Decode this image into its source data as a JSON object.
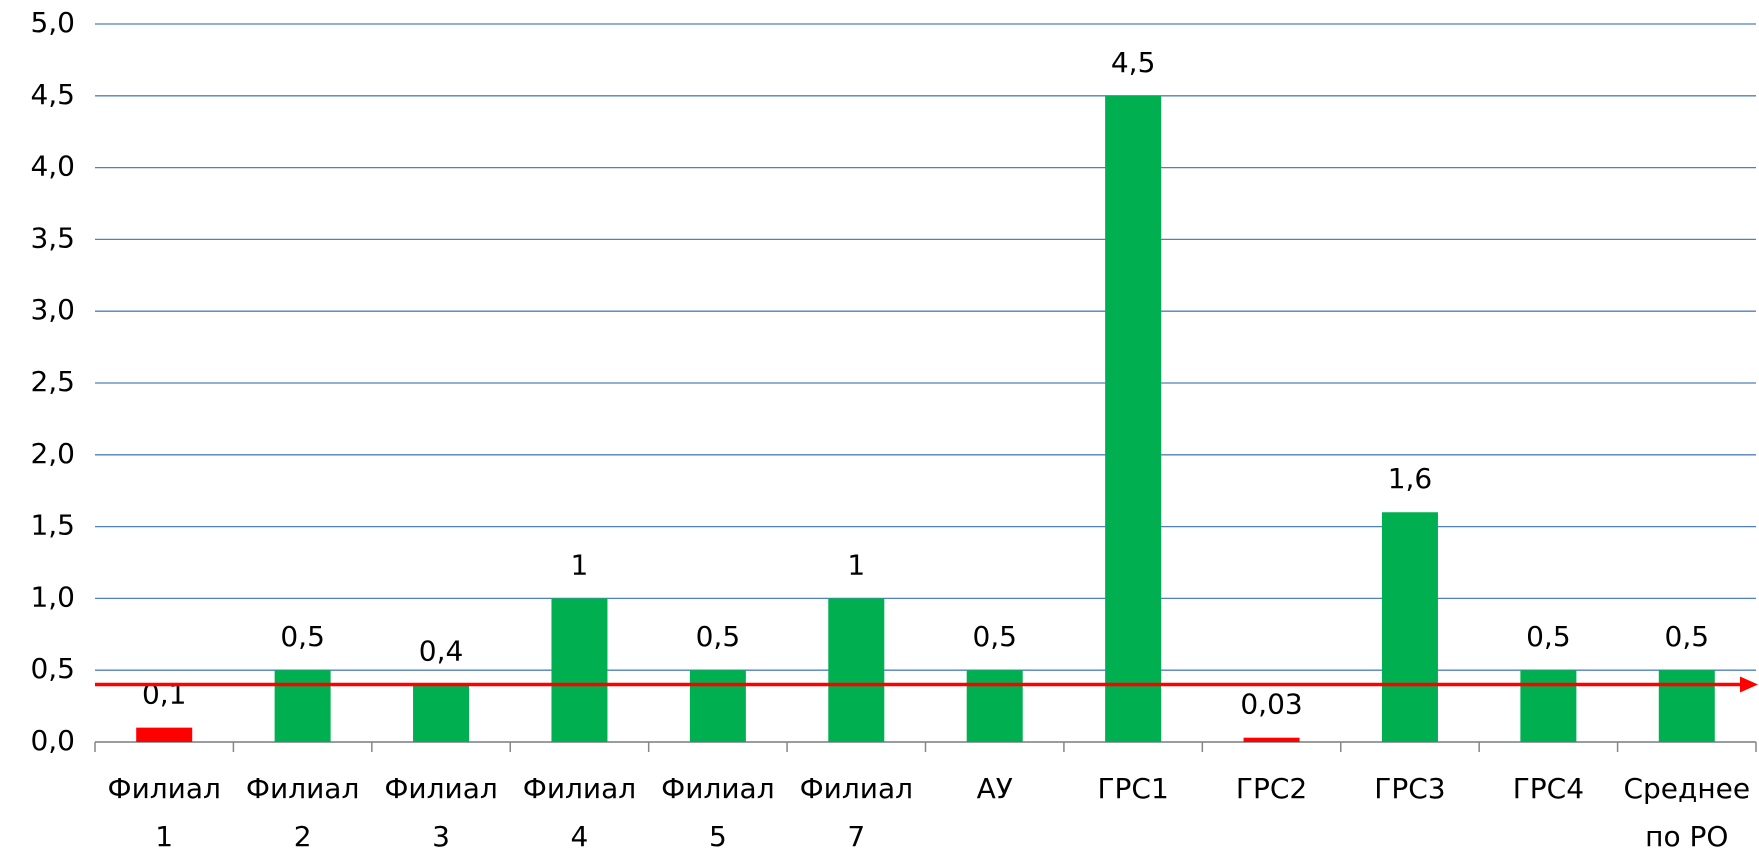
{
  "chart_data": {
    "type": "bar",
    "categories": [
      "Филиал 1",
      "Филиал 2",
      "Филиал 3",
      "Филиал 4",
      "Филиал 5",
      "Филиал 7",
      "АУ",
      "ГРС1",
      "ГРС2",
      "ГРС3",
      "ГРС4",
      "Среднее по РО"
    ],
    "values": [
      0.1,
      0.5,
      0.4,
      1,
      0.5,
      1,
      0.5,
      4.5,
      0.03,
      1.6,
      0.5,
      0.5
    ],
    "value_labels": [
      "0,1",
      "0,5",
      "0,4",
      "1",
      "0,5",
      "1",
      "0,5",
      "4,5",
      "0,03",
      "1,6",
      "0,5",
      "0,5"
    ],
    "colors": [
      "#ff0000",
      "#00b050",
      "#00b050",
      "#00b050",
      "#00b050",
      "#00b050",
      "#00b050",
      "#00b050",
      "#ff0000",
      "#00b050",
      "#00b050",
      "#00b050"
    ],
    "ylim": [
      0,
      5
    ],
    "yticks": [
      {
        "value": 0,
        "label": "0,0"
      },
      {
        "value": 0.5,
        "label": "0,5"
      },
      {
        "value": 1,
        "label": "1,0"
      },
      {
        "value": 1.5,
        "label": "1,5"
      },
      {
        "value": 2,
        "label": "2,0"
      },
      {
        "value": 2.5,
        "label": "2,5"
      },
      {
        "value": 3,
        "label": "3,0"
      },
      {
        "value": 3.5,
        "label": "3,5"
      },
      {
        "value": 4,
        "label": "4,0"
      },
      {
        "value": 4.5,
        "label": "4,5"
      },
      {
        "value": 5,
        "label": "5,0"
      }
    ],
    "grid": true,
    "reference_line": {
      "value": 0.4,
      "color": "#ff0000"
    }
  }
}
